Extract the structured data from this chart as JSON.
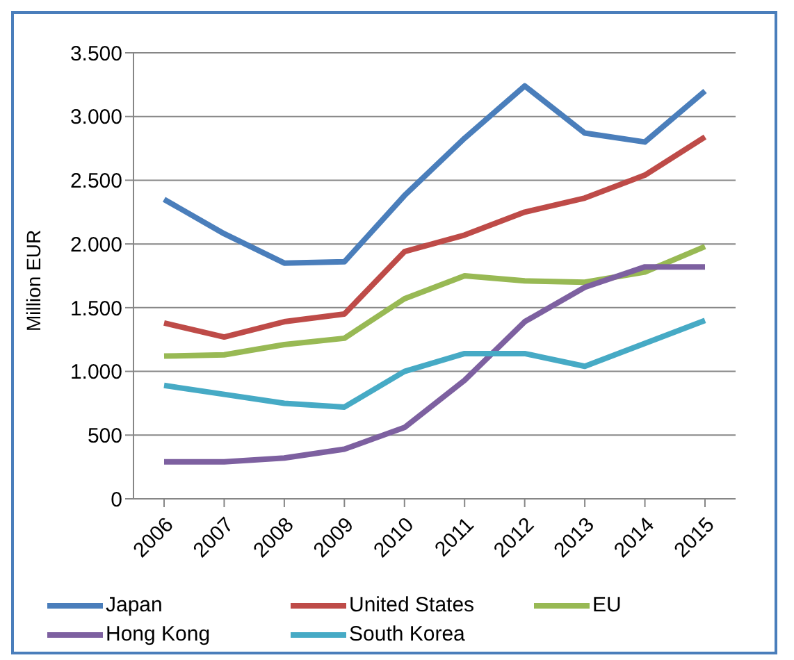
{
  "chart_data": {
    "type": "line",
    "ylabel": "Million EUR",
    "categories": [
      "2006",
      "2007",
      "2008",
      "2009",
      "2010",
      "2011",
      "2012",
      "2013",
      "2014",
      "2015"
    ],
    "series": [
      {
        "name": "Japan",
        "color": "#4a7ebb",
        "values": [
          2350,
          2080,
          1850,
          1860,
          2380,
          2830,
          3240,
          2870,
          2800,
          3200
        ]
      },
      {
        "name": "United States",
        "color": "#be4b48",
        "values": [
          1380,
          1270,
          1390,
          1450,
          1940,
          2070,
          2250,
          2360,
          2540,
          2840
        ]
      },
      {
        "name": "EU",
        "color": "#98b954",
        "values": [
          1120,
          1130,
          1210,
          1260,
          1570,
          1750,
          1710,
          1700,
          1780,
          1980
        ]
      },
      {
        "name": "Hong Kong",
        "color": "#7d60a0",
        "values": [
          290,
          290,
          320,
          390,
          560,
          930,
          1390,
          1660,
          1820,
          1820
        ]
      },
      {
        "name": "South Korea",
        "color": "#46aac5",
        "values": [
          890,
          820,
          750,
          720,
          1000,
          1140,
          1140,
          1040,
          1220,
          1400
        ]
      }
    ],
    "ylim": [
      0,
      3500
    ],
    "yticks": [
      0,
      500,
      {
        "value": 1000,
        "label": "1.000"
      },
      {
        "value": 1500,
        "label": "1.500"
      },
      {
        "value": 2000,
        "label": "2.000"
      },
      {
        "value": 2500,
        "label": "2.500"
      },
      {
        "value": 3000,
        "label": "3.000"
      },
      {
        "value": 3500,
        "label": "3.500"
      }
    ],
    "grid": "y",
    "legend": "bottom",
    "marker": "none",
    "line_style": "solid"
  }
}
